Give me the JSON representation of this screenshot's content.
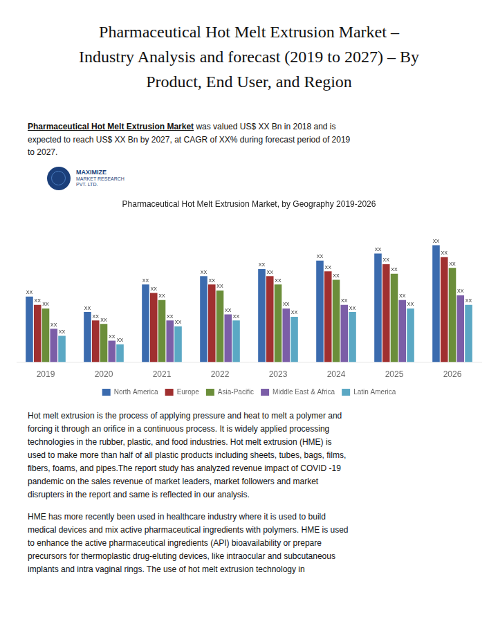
{
  "title": "Pharmaceutical Hot Melt Extrusion Market –\nIndustry Analysis and forecast (2019 to 2027) – By\nProduct, End User, and Region",
  "subtitle": {
    "bold": "Pharmaceutical Hot Melt Extrusion Market",
    "rest": " was valued US$ XX Bn in 2018 and is\nexpected to reach US$ XX Bn by 2027, at CAGR of XX% during forecast period of 2019\nto 2027."
  },
  "annotations": [
    "MAXIMIZE",
    "MARKET RESEARCH",
    "PVT. LTD."
  ],
  "body": [
    "Hot melt extrusion is the process of applying pressure and heat to melt a polymer and\nforcing it through an orifice in a continuous process. It is widely applied processing\ntechnologies in the rubber, plastic, and food industries. Hot melt extrusion (HME) is\nused to make more than half of all plastic products including sheets, tubes, bags, films,\nfibers, foams, and pipes.The report study has analyzed revenue impact of COVID -19\npandemic on the sales revenue of market leaders, market followers and market\ndisrupters in the report and same is reflected in our analysis.",
    "HME has more recently been used in healthcare industry where it is used to build\nmedical devices and mix active pharmaceutical ingredients with polymers. HME is used\nto enhance the active pharmaceutical ingredients (API) bioavailability or prepare\nprecursors for thermoplastic drug-eluting devices, like intraocular and subcutaneous\nimplants and intra vaginal rings. The use of hot melt extrusion technology in"
  ],
  "chart_data": {
    "type": "bar",
    "title": "Pharmaceutical Hot Melt Extrusion Market, by Geography 2019-2026",
    "categories": [
      "2019",
      "2020",
      "2021",
      "2022",
      "2023",
      "2024",
      "2025",
      "2026"
    ],
    "series": [
      {
        "name": "North America",
        "color": "#3B6BAE",
        "values": [
          5.5,
          4.2,
          6.5,
          7.2,
          7.8,
          8.5,
          9.1,
          9.8
        ],
        "value_labels": [
          "XX",
          "XX",
          "XX",
          "XX",
          "XX",
          "XX",
          "XX",
          "XX"
        ]
      },
      {
        "name": "Europe",
        "color": "#A03030",
        "values": [
          4.8,
          3.5,
          5.8,
          6.5,
          7.2,
          7.6,
          8.2,
          8.8
        ],
        "value_labels": [
          "XX",
          "XX",
          "XX",
          "XX",
          "XX",
          "XX",
          "XX",
          "XX"
        ]
      },
      {
        "name": "Asia-Pacific",
        "color": "#6B8E3A",
        "values": [
          4.5,
          3.2,
          5.2,
          6.0,
          6.5,
          6.9,
          7.4,
          7.9
        ],
        "value_labels": [
          "XX",
          "XX",
          "XX",
          "XX",
          "XX",
          "XX",
          "XX",
          "XX"
        ]
      },
      {
        "name": "Middle East & Africa",
        "color": "#7B5EA7",
        "values": [
          2.8,
          1.8,
          3.5,
          4.0,
          4.5,
          4.8,
          5.2,
          5.6
        ],
        "value_labels": [
          "XX",
          "XX",
          "XX",
          "XX",
          "XX",
          "XX",
          "XX",
          "XX"
        ]
      },
      {
        "name": "Latin America",
        "color": "#5BA8C4",
        "values": [
          2.2,
          1.5,
          3.0,
          3.5,
          3.8,
          4.2,
          4.5,
          4.8
        ],
        "value_labels": [
          "XX",
          "XX",
          "XX",
          "XX",
          "XX",
          "XX",
          "XX",
          "XX"
        ]
      }
    ],
    "ylim": [
      0,
      12
    ],
    "grid": false,
    "legend": "bottom",
    "tick_labels": "x"
  }
}
